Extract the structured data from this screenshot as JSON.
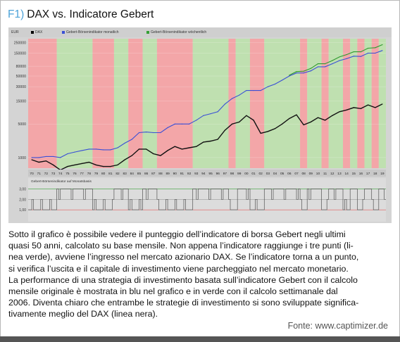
{
  "figure": {
    "number": "F1)",
    "title": "DAX vs. Indicatore Gebert",
    "accent_color": "#4da3d9"
  },
  "chart_data": {
    "type": "line",
    "legend": [
      {
        "name": "DAX",
        "color": "#000000"
      },
      {
        "name": "Gebert-Börsenindikator monatlich",
        "color": "#3a4fd6"
      },
      {
        "name": "Gebert-Börsenindikator wöchentlich",
        "color": "#35a035"
      }
    ],
    "y_unit": "EUR",
    "y_scale": "log",
    "y_ticks": [
      "250000",
      "150000",
      "80000",
      "50000",
      "30000",
      "15000",
      "5000",
      "1000"
    ],
    "x_ticks": [
      "70",
      "71",
      "72",
      "73",
      "74",
      "75",
      "76",
      "77",
      "78",
      "79",
      "80",
      "81",
      "82",
      "83",
      "84",
      "85",
      "86",
      "87",
      "88",
      "89",
      "90",
      "91",
      "92",
      "93",
      "94",
      "95",
      "96",
      "97",
      "98",
      "99",
      "00",
      "01",
      "02",
      "03",
      "04",
      "05",
      "06",
      "07",
      "08",
      "09",
      "10",
      "11",
      "12",
      "13",
      "14",
      "15",
      "16",
      "17",
      "18",
      "19"
    ],
    "regime_colors": {
      "in_market": "#bfe0b0",
      "out_of_market": "#f3a6a8"
    },
    "regimes_note_values": [
      [
        "70",
        "out"
      ],
      [
        "74",
        "in"
      ],
      [
        "79",
        "out"
      ],
      [
        "82",
        "in"
      ],
      [
        "84",
        "out"
      ],
      [
        "86",
        "in"
      ],
      [
        "88",
        "out"
      ],
      [
        "93",
        "in"
      ],
      [
        "98",
        "out"
      ],
      [
        "99",
        "in"
      ],
      [
        "01",
        "out"
      ],
      [
        "03",
        "in"
      ],
      [
        "08",
        "out"
      ],
      [
        "09",
        "in"
      ],
      [
        "11",
        "out"
      ],
      [
        "12",
        "in"
      ],
      [
        "14",
        "out"
      ],
      [
        "15",
        "in"
      ],
      [
        "16",
        "out"
      ],
      [
        "17",
        "in"
      ],
      [
        "18",
        "out"
      ],
      [
        "19",
        "in"
      ]
    ],
    "series": [
      {
        "name": "DAX",
        "values": [
          900,
          800,
          850,
          700,
          550,
          650,
          700,
          750,
          800,
          700,
          650,
          650,
          700,
          900,
          1100,
          1500,
          1500,
          1200,
          1100,
          1400,
          1700,
          1500,
          1600,
          1700,
          2100,
          2200,
          2400,
          3700,
          5000,
          5500,
          7500,
          6000,
          3200,
          3500,
          4000,
          5000,
          6500,
          7800,
          4800,
          5500,
          6800,
          6000,
          7500,
          9000,
          9800,
          11000,
          10500,
          12500,
          11000,
          13000
        ]
      },
      {
        "name": "Gebert-Börsenindikator monatlich",
        "values": [
          1000,
          1000,
          1050,
          1050,
          1000,
          1200,
          1300,
          1400,
          1500,
          1500,
          1450,
          1450,
          1600,
          2000,
          2400,
          3300,
          3400,
          3300,
          3300,
          4200,
          5000,
          5000,
          5000,
          6000,
          7500,
          8200,
          9000,
          13000,
          17000,
          20000,
          25000,
          25000,
          25000,
          30000,
          34000,
          41000,
          50000,
          58000,
          58000,
          64000,
          78000,
          78000,
          90000,
          105000,
          115000,
          130000,
          128000,
          150000,
          150000,
          170000
        ]
      },
      {
        "name": "Gebert-Börsenindikator wöchentlich",
        "values": [
          null,
          null,
          null,
          null,
          null,
          null,
          null,
          null,
          null,
          null,
          null,
          null,
          null,
          null,
          null,
          null,
          null,
          null,
          null,
          null,
          null,
          null,
          null,
          null,
          null,
          null,
          null,
          null,
          null,
          null,
          null,
          null,
          null,
          null,
          null,
          null,
          52000,
          62000,
          63000,
          72000,
          90000,
          90000,
          105000,
          125000,
          140000,
          160000,
          160000,
          190000,
          195000,
          225000
        ]
      }
    ],
    "lower_panel": {
      "title": "Gebert-Börsenindikator auf Monatsbasis",
      "y_ticks": [
        "3,00",
        "2,00",
        "1,00"
      ],
      "y_range": [
        0,
        3.5
      ]
    }
  },
  "caption_lines": [
    "Sotto il grafico è possibile vedere il punteggio dell’indicatore di borsa Gebert negli ultimi",
    "quasi 50 anni, calcolato su base mensile. Non appena l’indicatore raggiunge i tre punti (li-",
    "nea verde), avviene l’ingresso nel mercato azionario DAX. Se l’indicatore torna a un punto,",
    "si verifica l’uscita e il capitale di investimento viene parcheggiato nel mercato monetario.",
    "La performance di una strategia di investimento basata sull’indicatore Gebert con il calcolo",
    "mensile originale è mostrata in blu nel grafico e in verde con il calcolo settimanale dal",
    "2006. Diventa chiaro che entrambe le strategie di investimento si sono sviluppate significa-",
    "tivamente meglio del DAX (linea nera)."
  ],
  "source": "Fonte:  www.captimizer.de"
}
